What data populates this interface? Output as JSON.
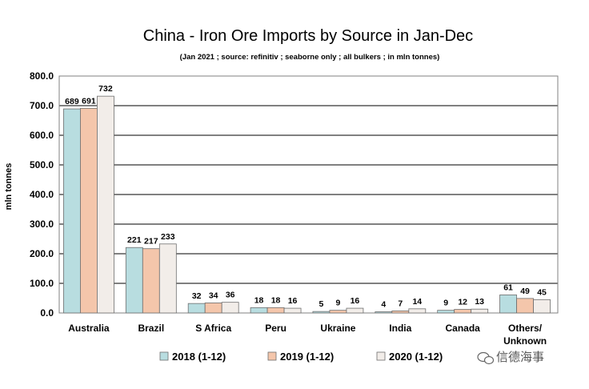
{
  "chart_data": {
    "type": "bar",
    "title": "China - Iron Ore Imports by Source in Jan-Dec",
    "subtitle": "(Jan 2021 ; source: refinitiv ; seaborne only ; all bulkers ; in mln tonnes)",
    "xlabel": "",
    "ylabel": "mln tonnes",
    "ylim": [
      0,
      800
    ],
    "yticks": [
      "0.0",
      "100.0",
      "200.0",
      "300.0",
      "400.0",
      "500.0",
      "600.0",
      "700.0",
      "800.0"
    ],
    "grid": true,
    "legend_position": "bottom",
    "categories": [
      "Australia",
      "Brazil",
      "S Africa",
      "Peru",
      "Ukraine",
      "India",
      "Canada",
      "Others/ Unknown"
    ],
    "category_lines": [
      [
        "Australia"
      ],
      [
        "Brazil"
      ],
      [
        "S Africa"
      ],
      [
        "Peru"
      ],
      [
        "Ukraine"
      ],
      [
        "India"
      ],
      [
        "Canada"
      ],
      [
        "Others/",
        "Unknown"
      ]
    ],
    "series": [
      {
        "name": "2018 (1-12)",
        "color": "#b8dde0",
        "values": [
          689,
          221,
          32,
          18,
          5,
          4,
          9,
          61
        ]
      },
      {
        "name": "2019 (1-12)",
        "color": "#f4c6ab",
        "values": [
          691,
          217,
          34,
          18,
          9,
          7,
          12,
          49
        ]
      },
      {
        "name": "2020 (1-12)",
        "color": "#f2ede9",
        "values": [
          732,
          233,
          36,
          16,
          16,
          14,
          13,
          45
        ]
      }
    ]
  },
  "watermark": {
    "text": "信德海事",
    "icon": "wechat-icon"
  },
  "colors": {
    "plot_border": "#808080",
    "gridline": "#000000",
    "bar_outline": "#6e6e6e"
  }
}
